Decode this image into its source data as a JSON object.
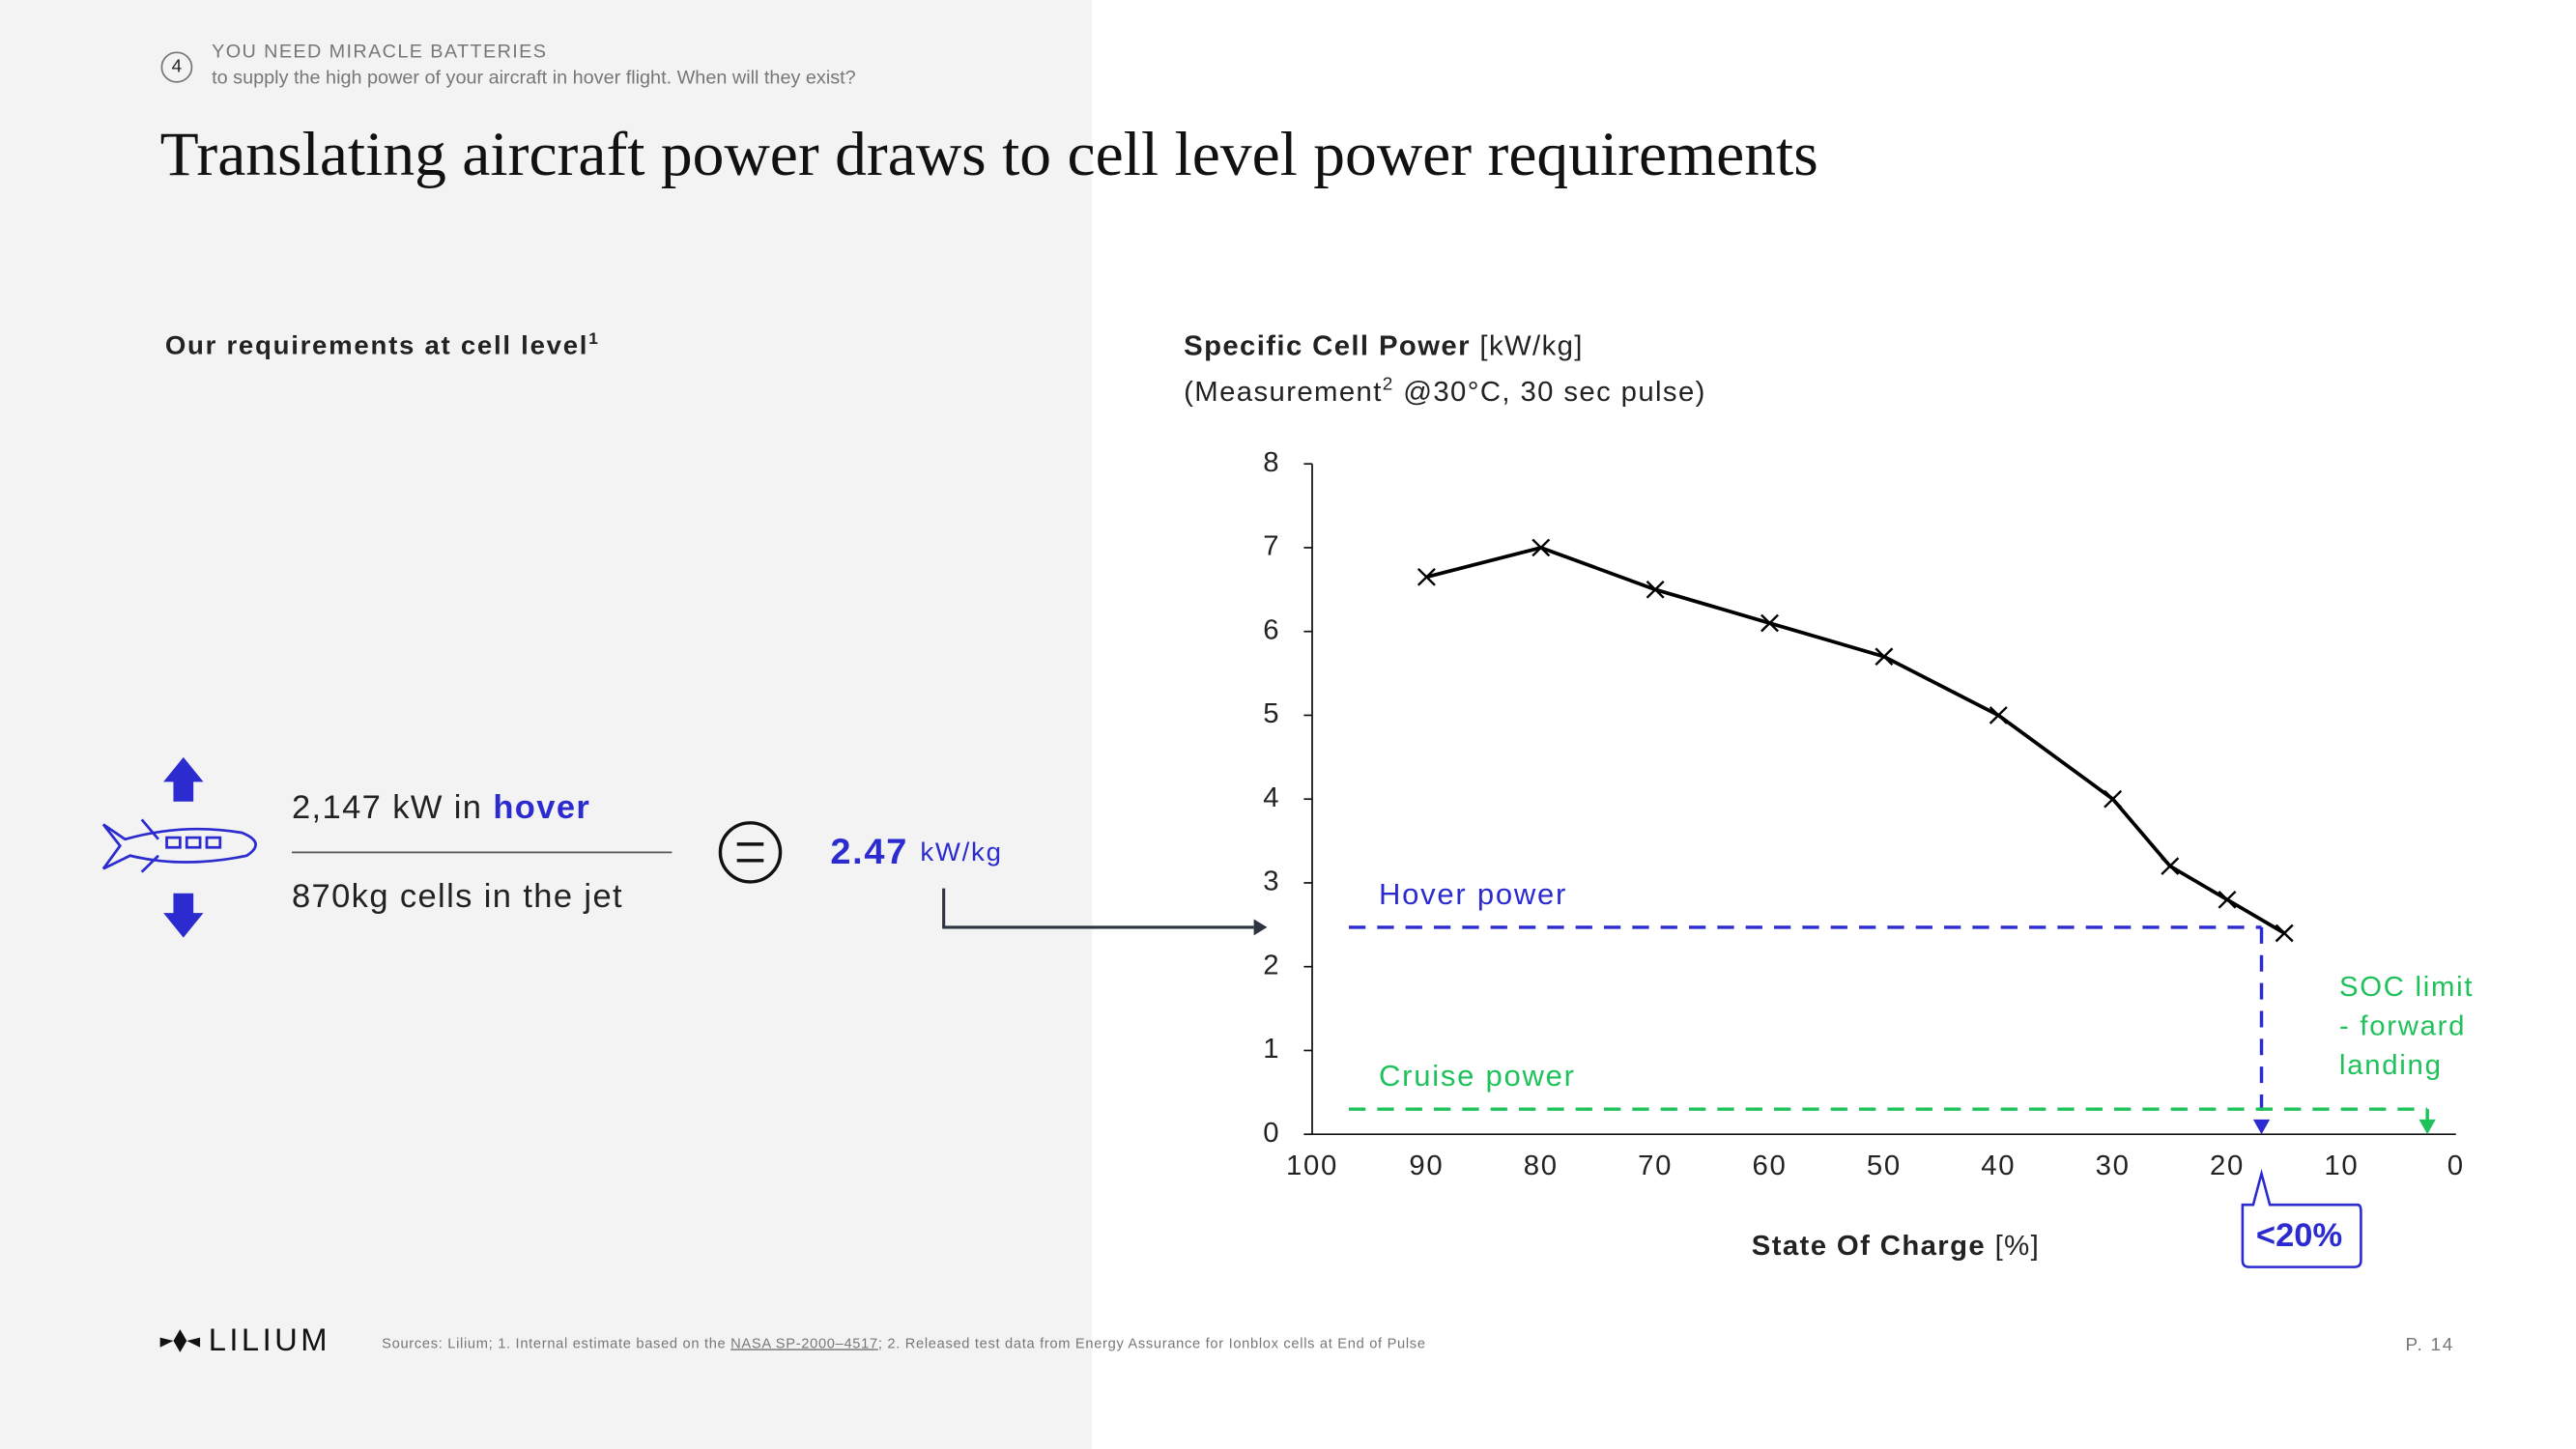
{
  "slide": {
    "section_number": "4",
    "section_title": "YOU NEED MIRACLE BATTERIES",
    "section_subtitle": "to supply the high power of your aircraft in hover flight. When will they exist?",
    "title": "Translating aircraft power draws to cell level power requirements",
    "left_heading": "Our requirements at cell level",
    "left_heading_sup": "1",
    "numerator": [
      "2,147 kW in",
      "hover"
    ],
    "denominator": "870kg cells in the jet",
    "result_unit": "kW/kg",
    "logo": "LILIUM",
    "sources": [
      "Sources: Lilium; 1. Internal estimate based on the ",
      "NASA SP-2000–4517",
      "; 2. Released test data from Energy Assurance for Ionblox cells at End of Pulse"
    ],
    "page": "P. 14"
  },
  "chart_data": {
    "type": "line",
    "title": "Specific Cell Power",
    "title_unit": "[kW/kg]",
    "subtitle": [
      "(Measurement",
      "2",
      " @30°C, 30 sec pulse)"
    ],
    "x_label": "State Of Charge",
    "x_label_unit": "[%]",
    "x": [
      90,
      80,
      70,
      60,
      50,
      40,
      30,
      25,
      20,
      15
    ],
    "series": [
      {
        "color": "#000000",
        "values": [
          6.65,
          7.0,
          6.5,
          6.1,
          5.7,
          5.0,
          4.0,
          3.2,
          2.8,
          2.4
        ]
      }
    ],
    "xlim": [
      100,
      0
    ],
    "xticks": [
      100,
      90,
      80,
      70,
      60,
      50,
      40,
      30,
      20,
      10,
      0
    ],
    "ylim": [
      0,
      8
    ],
    "yticks": [
      0,
      1,
      2,
      3,
      4,
      5,
      6,
      7,
      8
    ],
    "hlines": [
      {
        "label": "Hover power",
        "value": 2.47,
        "color": "#2b2bd0",
        "to_x": 17
      },
      {
        "label": "Cruise power",
        "value": 0.3,
        "color": "#1fc25a",
        "to_x": 2.5
      }
    ],
    "annotations": [
      {
        "text": [
          "SOC limit",
          "- forward",
          "landing"
        ],
        "color": "#1fc25a"
      },
      {
        "text": "<20%",
        "color": "#2b2bd0"
      }
    ]
  }
}
